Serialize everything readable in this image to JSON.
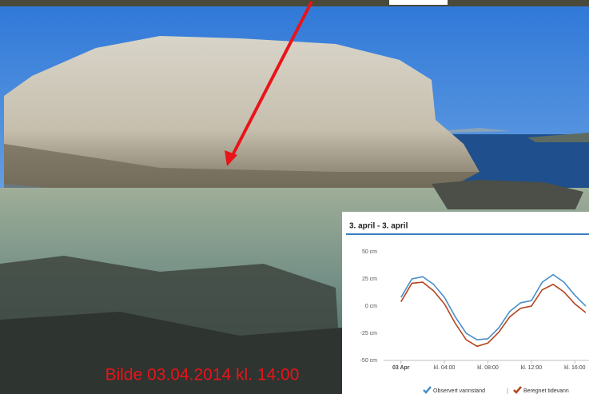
{
  "caption": "Bilde 03.04.2014 kl. 14:00",
  "chart_data": {
    "type": "line",
    "title": "3. april - 3. april",
    "x": [
      0,
      1,
      2,
      3,
      4,
      5,
      6,
      7,
      8,
      9,
      10,
      11,
      12,
      13,
      14,
      15,
      16,
      17
    ],
    "series": [
      {
        "name": "Observert vannstand",
        "color": "#4a8fc9",
        "values": [
          8,
          25,
          27,
          20,
          8,
          -10,
          -25,
          -31,
          -30,
          -20,
          -5,
          3,
          5,
          22,
          29,
          22,
          10,
          0
        ]
      },
      {
        "name": "Beregnet tidevann",
        "color": "#b5441e",
        "values": [
          4,
          21,
          22,
          14,
          2,
          -16,
          -31,
          -37,
          -34,
          -24,
          -10,
          -2,
          0,
          15,
          20,
          13,
          2,
          -6
        ]
      }
    ],
    "xlim": [
      -1.6,
      17.3
    ],
    "ylim": [
      -50,
      50
    ],
    "xticks": [
      {
        "value": 0,
        "label": "03 Apr"
      },
      {
        "value": 4,
        "label": "kl. 04:00"
      },
      {
        "value": 8,
        "label": "kl. 08:00"
      },
      {
        "value": 12,
        "label": "kl. 12:00"
      },
      {
        "value": 16,
        "label": "kl. 16:00"
      }
    ],
    "yticks": [
      {
        "value": -50,
        "label": "-50 cm"
      },
      {
        "value": -25,
        "label": "-25 cm"
      },
      {
        "value": 0,
        "label": "0 cm"
      },
      {
        "value": 25,
        "label": "25 cm"
      },
      {
        "value": 50,
        "label": "50 cm"
      }
    ],
    "grid": false
  }
}
